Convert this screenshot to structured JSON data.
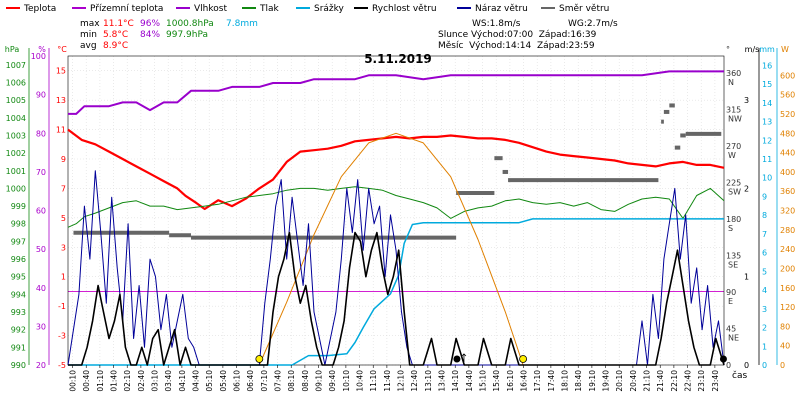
{
  "legend": [
    {
      "label": "Teplota",
      "color": "#ff0000"
    },
    {
      "label": "Přízemní teplota",
      "color": "#aa00cc"
    },
    {
      "label": "Vlhkost",
      "color": "#9900cc"
    },
    {
      "label": "Tlak",
      "color": "#118811"
    },
    {
      "label": "Srážky",
      "color": "#00aadd"
    },
    {
      "label": "Rychlost větru",
      "color": "#000000"
    },
    {
      "label": "Náraz větru",
      "color": "#000099"
    },
    {
      "label": "Směr větru",
      "color": "#666666"
    }
  ],
  "stats": {
    "max": {
      "label": "max",
      "temp": "11.1°C",
      "hum": "96%",
      "press": "1000.8hPa",
      "rain": "7.8mm"
    },
    "min": {
      "label": "min",
      "temp": "5.8°C",
      "hum": "84%",
      "press": "997.9hPa"
    },
    "avg": {
      "label": "avg",
      "temp": "8.9°C"
    }
  },
  "wind_info": {
    "ws": "WS:1.8m/s",
    "wg": "WG:2.7m/s",
    "sun": "Slunce Východ:07:00  Západ:16:39",
    "moon": "Měsíc  Východ:14:14  Západ:23:59"
  },
  "date_title": "5.11.2019",
  "x_axis_label": "čas",
  "axes": {
    "hpa": {
      "unit": "hPa",
      "ticks": [
        "1007",
        "1006",
        "1005",
        "1004",
        "1003",
        "1002",
        "1001",
        "1000",
        "999",
        "998",
        "997",
        "996",
        "995",
        "994",
        "993",
        "992",
        "991",
        "990"
      ]
    },
    "pct": {
      "unit": "%",
      "ticks": [
        "100",
        "90",
        "80",
        "70",
        "60",
        "50",
        "40",
        "30",
        "20"
      ]
    },
    "temp": {
      "unit": "°C",
      "ticks": [
        "15",
        "13",
        "11",
        "9",
        "7",
        "5",
        "3",
        "1",
        "-1",
        "-3",
        "-5"
      ]
    },
    "deg": {
      "unit": "°",
      "ticks": [
        "360",
        "315",
        "270",
        "225",
        "180",
        "135",
        "90",
        "45",
        "0"
      ],
      "dirs": [
        "N",
        "NW",
        "W",
        "SW",
        "S",
        "SE",
        "E",
        "NE",
        ""
      ]
    },
    "ms": {
      "unit": "m/s",
      "ticks": [
        "3",
        "2",
        "1",
        "0"
      ]
    },
    "mm": {
      "unit": "mm",
      "ticks": [
        "16",
        "15",
        "14",
        "13",
        "12",
        "11",
        "10",
        "9",
        "8",
        "7",
        "6",
        "5",
        "4",
        "3",
        "2",
        "1",
        "0"
      ]
    },
    "w": {
      "unit": "W",
      "ticks": [
        "600",
        "560",
        "520",
        "480",
        "440",
        "400",
        "360",
        "320",
        "280",
        "240",
        "200",
        "160",
        "120",
        "80",
        "40",
        "0"
      ]
    }
  },
  "chart_data": {
    "type": "line",
    "title": "5.11.2019",
    "x_ticks": [
      "00:10",
      "00:40",
      "01:10",
      "01:40",
      "02:10",
      "02:40",
      "03:10",
      "03:40",
      "04:10",
      "04:40",
      "05:10",
      "05:40",
      "06:10",
      "06:40",
      "07:10",
      "07:40",
      "08:10",
      "08:40",
      "09:10",
      "09:40",
      "10:10",
      "10:40",
      "11:10",
      "11:40",
      "12:10",
      "12:40",
      "13:10",
      "13:40",
      "14:10",
      "14:40",
      "15:10",
      "15:40",
      "16:10",
      "16:40",
      "17:10",
      "17:40",
      "18:10",
      "18:40",
      "19:10",
      "19:40",
      "20:10",
      "20:40",
      "21:10",
      "21:40",
      "22:10",
      "22:40",
      "23:10",
      "23:40"
    ],
    "ylim_temp": [
      -5,
      16
    ],
    "ylim_pct": [
      20,
      100
    ],
    "ylim_hpa": [
      990,
      1007.5
    ],
    "ylim_ms": [
      0,
      3.5
    ],
    "ylim_mm": [
      0,
      16.5
    ],
    "ylim_deg": [
      0,
      360
    ],
    "ylim_w": [
      0,
      640
    ],
    "series": [
      {
        "name": "Teplota",
        "color": "#ff0000",
        "width": 2.2,
        "axis": "temp",
        "x": [
          0,
          0.5,
          1,
          1.5,
          2,
          2.5,
          3,
          3.5,
          4,
          4.3,
          4.7,
          5,
          5.5,
          6,
          6.5,
          7,
          7.5,
          8,
          8.5,
          9,
          9.5,
          10,
          10.5,
          11,
          11.5,
          12,
          12.5,
          13,
          13.5,
          14,
          14.5,
          15,
          15.5,
          16,
          16.5,
          17,
          17.5,
          18,
          18.5,
          19,
          19.5,
          20,
          20.5,
          21,
          21.5,
          22,
          22.5,
          23,
          23.5,
          24
        ],
        "y": [
          11,
          10.3,
          10,
          9.5,
          9,
          8.5,
          8,
          7.5,
          7,
          6.5,
          6,
          5.6,
          6.2,
          5.8,
          6.3,
          7,
          7.6,
          8.8,
          9.5,
          9.6,
          9.7,
          9.9,
          10.2,
          10.3,
          10.4,
          10.5,
          10.4,
          10.5,
          10.5,
          10.6,
          10.5,
          10.4,
          10.4,
          10.3,
          10.1,
          9.8,
          9.5,
          9.3,
          9.2,
          9.1,
          9.0,
          8.9,
          8.7,
          8.6,
          8.5,
          8.7,
          8.8,
          8.6,
          8.6,
          8.4
        ]
      },
      {
        "name": "Vlhkost",
        "color": "#9900cc",
        "width": 2,
        "axis": "pct",
        "x": [
          0,
          0.3,
          0.6,
          1,
          1.5,
          2,
          2.5,
          3,
          3.5,
          4,
          4.5,
          5,
          5.5,
          6,
          6.5,
          7,
          7.5,
          8,
          8.5,
          9,
          9.5,
          10,
          10.5,
          11,
          11.5,
          12,
          13,
          14,
          14.5,
          15,
          16,
          17,
          18,
          19,
          20,
          21,
          22,
          23,
          24
        ],
        "y": [
          85,
          85,
          87,
          87,
          87,
          88,
          88,
          86,
          88,
          88,
          91,
          91,
          91,
          92,
          92,
          92,
          93,
          93,
          93,
          94,
          94,
          94,
          94,
          95,
          95,
          95,
          94,
          95,
          95,
          95,
          95,
          95,
          95,
          95,
          95,
          95,
          96,
          96,
          96
        ]
      },
      {
        "name": "Tlak",
        "color": "#118811",
        "width": 1,
        "axis": "hpa",
        "x": [
          0,
          0.3,
          0.6,
          1,
          1.5,
          2,
          2.5,
          3,
          3.5,
          4,
          4.5,
          5,
          5.5,
          6,
          6.5,
          7,
          7.5,
          8,
          8.5,
          9,
          9.5,
          10,
          10.5,
          11,
          11.5,
          12,
          12.5,
          13,
          13.5,
          14,
          14.5,
          15,
          15.5,
          16,
          16.5,
          17,
          17.5,
          18,
          18.5,
          19,
          19.5,
          20,
          20.5,
          21,
          21.5,
          22,
          22.5,
          23,
          23.5,
          24
        ],
        "y": [
          997.8,
          998.0,
          998.4,
          998.6,
          998.9,
          999.2,
          999.3,
          999.0,
          999.0,
          998.8,
          998.9,
          999.0,
          999.1,
          999.3,
          999.5,
          999.6,
          999.7,
          999.9,
          1000.0,
          1000.0,
          999.9,
          1000.0,
          1000.1,
          1000.0,
          999.9,
          999.6,
          999.4,
          999.2,
          998.9,
          998.3,
          998.7,
          998.9,
          999.0,
          999.3,
          999.4,
          999.2,
          999.1,
          999.2,
          999.0,
          999.2,
          998.8,
          998.7,
          999.1,
          999.4,
          999.5,
          999.4,
          998.3,
          999.6,
          1000.0,
          999.3
        ]
      },
      {
        "name": "Srážky",
        "color": "#00aadd",
        "width": 1.5,
        "axis": "mm",
        "x": [
          0,
          8.2,
          8.8,
          9.5,
          10.2,
          10.5,
          10.8,
          11.2,
          11.5,
          11.8,
          12.1,
          12.3,
          12.6,
          13,
          14,
          15,
          15.5,
          16,
          16.5,
          17,
          17.5,
          18,
          20,
          22,
          24
        ],
        "y": [
          0,
          0,
          0.5,
          0.5,
          0.6,
          1.2,
          2,
          3,
          3.4,
          3.8,
          4.8,
          6.5,
          7.5,
          7.6,
          7.6,
          7.6,
          7.6,
          7.6,
          7.6,
          7.8,
          7.8,
          7.8,
          7.8,
          7.8,
          7.8
        ]
      },
      {
        "name": "Slunce",
        "color": "#e08000",
        "width": 1,
        "axis": "w",
        "x": [
          7,
          8,
          9,
          10,
          11,
          12,
          13,
          14,
          15,
          16,
          16.65
        ],
        "y": [
          0,
          130,
          270,
          390,
          460,
          480,
          460,
          390,
          260,
          110,
          0
        ]
      }
    ],
    "wind_speed": {
      "name": "Rychlost větru",
      "color": "#000000",
      "axis": "ms",
      "x": [
        0,
        0.5,
        0.7,
        0.9,
        1.1,
        1.3,
        1.5,
        1.7,
        1.9,
        2.1,
        2.3,
        2.5,
        2.7,
        2.9,
        3.1,
        3.3,
        3.5,
        3.7,
        3.9,
        4.1,
        4.3,
        4.5,
        4.7,
        4.9,
        5.1,
        5.5,
        6,
        6.5,
        7,
        7.3,
        7.5,
        7.7,
        7.9,
        8.1,
        8.3,
        8.5,
        8.7,
        8.9,
        9.1,
        9.3,
        9.5,
        9.7,
        9.9,
        10.1,
        10.3,
        10.5,
        10.7,
        10.9,
        11.1,
        11.3,
        11.5,
        11.7,
        11.9,
        12.1,
        12.3,
        12.5,
        13,
        13.3,
        13.5,
        14,
        14.2,
        14.5,
        15,
        15.2,
        15.5,
        16,
        16.2,
        16.5,
        17,
        17.5,
        18,
        19,
        20,
        20.5,
        21,
        21.5,
        21.7,
        21.9,
        22.1,
        22.3,
        22.5,
        22.7,
        22.9,
        23.1,
        23.3,
        23.5,
        23.7,
        24
      ],
      "y": [
        0,
        0,
        0.2,
        0.5,
        0.9,
        0.6,
        0.3,
        0.5,
        0.8,
        0.2,
        0,
        0,
        0.2,
        0,
        0.3,
        0.4,
        0,
        0.2,
        0.4,
        0,
        0.2,
        0,
        0,
        0,
        0,
        0,
        0,
        0,
        0,
        0,
        0.6,
        1.0,
        1.2,
        1.5,
        1.0,
        0.7,
        0.9,
        0.5,
        0.2,
        0,
        0,
        0,
        0.2,
        0.5,
        1.1,
        1.5,
        1.4,
        1.0,
        1.3,
        1.5,
        1.1,
        0.8,
        1.0,
        1.3,
        0.6,
        0,
        0,
        0.3,
        0,
        0,
        0.3,
        0,
        0,
        0.3,
        0,
        0,
        0.3,
        0,
        0,
        0,
        0,
        0,
        0,
        0,
        0,
        0,
        0.3,
        0.7,
        1.0,
        1.3,
        0.9,
        0.5,
        0.2,
        0,
        0,
        0,
        0.3,
        0
      ]
    },
    "wind_gust": {
      "name": "Náraz větru",
      "color": "#000099",
      "axis": "ms",
      "x": [
        0,
        0.4,
        0.6,
        0.8,
        1.0,
        1.2,
        1.4,
        1.6,
        1.8,
        2.0,
        2.2,
        2.4,
        2.6,
        2.8,
        3.0,
        3.2,
        3.4,
        3.6,
        3.8,
        4.0,
        4.2,
        4.4,
        4.6,
        4.8,
        5.0,
        5.5,
        6,
        6.5,
        7,
        7.2,
        7.4,
        7.6,
        7.8,
        8.0,
        8.2,
        8.4,
        8.6,
        8.8,
        9.0,
        9.2,
        9.4,
        9.6,
        9.8,
        10.0,
        10.2,
        10.4,
        10.6,
        10.8,
        11.0,
        11.2,
        11.4,
        11.6,
        11.8,
        12.0,
        12.2,
        12.4,
        12.6,
        13,
        14,
        14.5,
        15,
        16,
        17,
        18,
        19,
        20,
        20.5,
        20.8,
        21,
        21.2,
        21.4,
        21.6,
        21.8,
        22.0,
        22.2,
        22.4,
        22.6,
        22.8,
        23.0,
        23.2,
        23.4,
        23.6,
        23.8,
        24
      ],
      "y": [
        0,
        0.8,
        1.8,
        1.2,
        2.2,
        1.5,
        0.7,
        1.9,
        1.1,
        0.5,
        1.6,
        0.3,
        0.9,
        0.2,
        1.2,
        1.0,
        0.4,
        0.8,
        0.2,
        0.5,
        0.8,
        0.3,
        0.2,
        0,
        0,
        0,
        0,
        0,
        0,
        0.7,
        1.2,
        1.8,
        2.1,
        1.2,
        1.9,
        1.4,
        0.9,
        1.6,
        0.6,
        0.3,
        0,
        0.3,
        0.6,
        1.2,
        2.0,
        1.5,
        2.1,
        1.3,
        2.0,
        1.6,
        1.8,
        1.0,
        1.7,
        1.3,
        0.6,
        0.2,
        0,
        0,
        0,
        0,
        0,
        0,
        0,
        0,
        0,
        0,
        0,
        0,
        0.5,
        0,
        0.8,
        0.3,
        1.2,
        1.6,
        2.0,
        1.2,
        1.7,
        0.7,
        1.1,
        0.4,
        0.9,
        0.2,
        0.5,
        0
      ]
    },
    "wind_dir_segments": [
      {
        "x0": 0.2,
        "x1": 3.7,
        "deg": 163
      },
      {
        "x0": 3.7,
        "x1": 4.5,
        "deg": 160
      },
      {
        "x0": 4.5,
        "x1": 14.2,
        "deg": 157
      },
      {
        "x0": 14.2,
        "x1": 15.6,
        "deg": 212
      },
      {
        "x0": 15.6,
        "x1": 15.9,
        "deg": 255
      },
      {
        "x0": 15.9,
        "x1": 16.1,
        "deg": 238
      },
      {
        "x0": 16.1,
        "x1": 21.6,
        "deg": 228
      },
      {
        "x0": 21.7,
        "x1": 21.8,
        "deg": 300
      },
      {
        "x0": 21.8,
        "x1": 22.0,
        "deg": 312
      },
      {
        "x0": 22.0,
        "x1": 22.2,
        "deg": 320
      },
      {
        "x0": 22.2,
        "x1": 22.4,
        "deg": 268
      },
      {
        "x0": 22.4,
        "x1": 22.6,
        "deg": 283
      },
      {
        "x0": 22.6,
        "x1": 23.9,
        "deg": 285
      }
    ],
    "markers": [
      {
        "type": "sunrise",
        "x": 7.0
      },
      {
        "type": "sunset",
        "x": 16.65
      },
      {
        "type": "moonrise",
        "x": 14.23
      },
      {
        "type": "moonset",
        "x": 23.98
      }
    ],
    "grid": true
  }
}
